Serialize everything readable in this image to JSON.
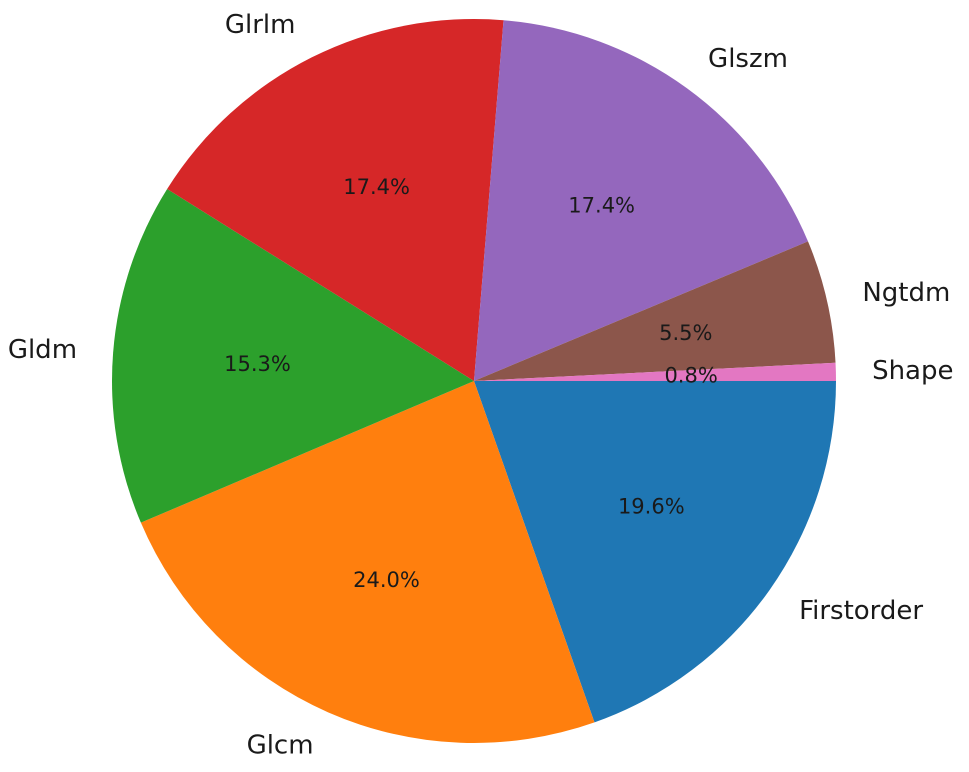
{
  "chart_data": {
    "type": "pie",
    "categories": [
      "Firstorder",
      "Glcm",
      "Gldm",
      "Glrlm",
      "Glszm",
      "Ngtdm",
      "Shape"
    ],
    "values": [
      19.6,
      24.0,
      15.3,
      17.4,
      17.4,
      5.5,
      0.8
    ],
    "value_labels": [
      "19.6%",
      "24.0%",
      "15.3%",
      "17.4%",
      "17.4%",
      "5.5%",
      "0.8%"
    ],
    "colors": [
      "#1f77b4",
      "#ff7f0e",
      "#2ca02c",
      "#d62728",
      "#9467bd",
      "#8c564b",
      "#e377c2"
    ],
    "start_angle_deg": 0,
    "direction": "clockwise",
    "legend": "none"
  }
}
